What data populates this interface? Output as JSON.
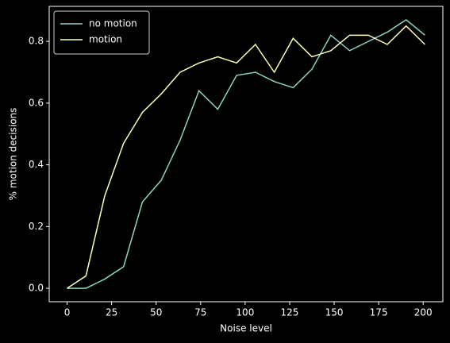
{
  "chart_data": {
    "type": "line",
    "xlabel": "Noise level",
    "ylabel": "% motion decisions",
    "x": [
      0,
      10.58,
      21.16,
      31.74,
      42.32,
      52.89,
      63.47,
      74.05,
      84.63,
      95.21,
      105.79,
      116.37,
      126.95,
      137.53,
      148.11,
      158.68,
      169.26,
      179.84,
      190.42,
      201
    ],
    "series": [
      {
        "name": "no motion",
        "color": "#8dd3c7",
        "values": [
          0,
          0,
          0.03,
          0.07,
          0.28,
          0.35,
          0.48,
          0.64,
          0.58,
          0.69,
          0.7,
          0.67,
          0.65,
          0.71,
          0.82,
          0.77,
          0.8,
          0.83,
          0.87,
          0.82
        ]
      },
      {
        "name": "motion",
        "color": "#feffb3",
        "values": [
          0,
          0.04,
          0.3,
          0.47,
          0.57,
          0.63,
          0.7,
          0.73,
          0.75,
          0.73,
          0.79,
          0.7,
          0.81,
          0.75,
          0.77,
          0.82,
          0.82,
          0.79,
          0.85,
          0.79
        ]
      }
    ],
    "xlim": [
      -10.05,
      211.05
    ],
    "xticks": [
      0,
      25,
      50,
      75,
      100,
      125,
      150,
      175,
      200
    ],
    "ylim": [
      -0.0435,
      0.9135
    ],
    "yticks": [
      {
        "value": 0,
        "label": "0.0"
      },
      0.2,
      0.4,
      0.6,
      0.8
    ],
    "legend": "upper left",
    "grid": false
  }
}
